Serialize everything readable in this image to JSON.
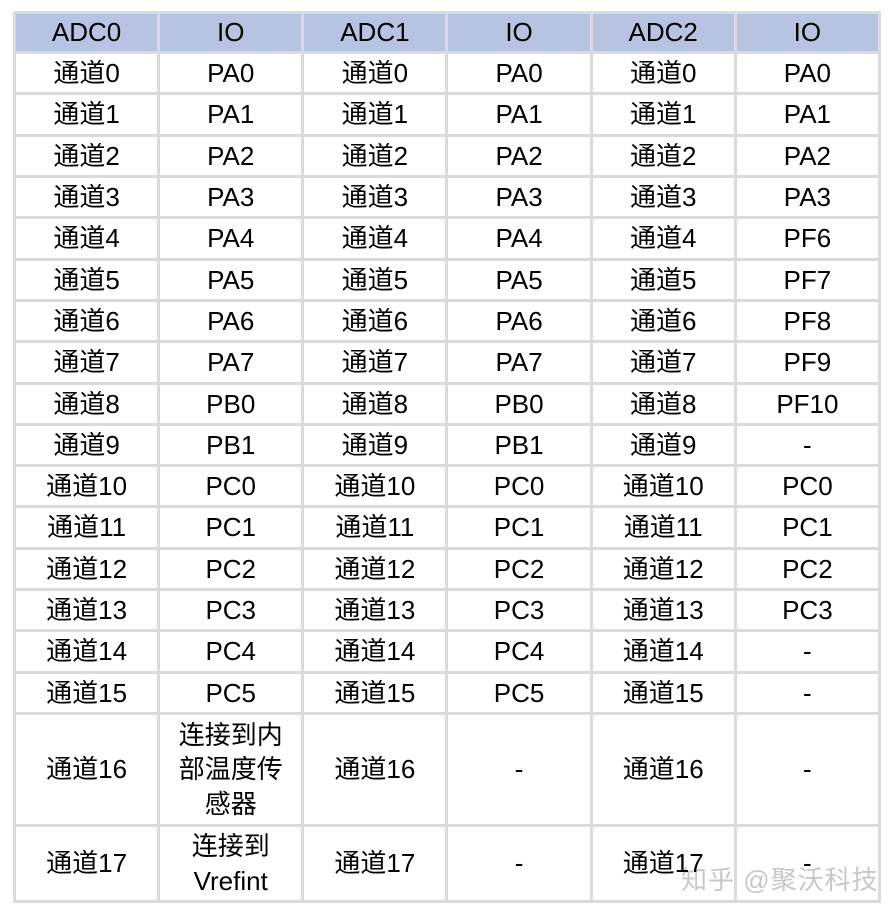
{
  "table": {
    "headers": [
      "ADC0",
      "IO",
      "ADC1",
      "IO",
      "ADC2",
      "IO"
    ],
    "rows": [
      [
        "通道0",
        "PA0",
        "通道0",
        "PA0",
        "通道0",
        "PA0"
      ],
      [
        "通道1",
        "PA1",
        "通道1",
        "PA1",
        "通道1",
        "PA1"
      ],
      [
        "通道2",
        "PA2",
        "通道2",
        "PA2",
        "通道2",
        "PA2"
      ],
      [
        "通道3",
        "PA3",
        "通道3",
        "PA3",
        "通道3",
        "PA3"
      ],
      [
        "通道4",
        "PA4",
        "通道4",
        "PA4",
        "通道4",
        "PF6"
      ],
      [
        "通道5",
        "PA5",
        "通道5",
        "PA5",
        "通道5",
        "PF7"
      ],
      [
        "通道6",
        "PA6",
        "通道6",
        "PA6",
        "通道6",
        "PF8"
      ],
      [
        "通道7",
        "PA7",
        "通道7",
        "PA7",
        "通道7",
        "PF9"
      ],
      [
        "通道8",
        "PB0",
        "通道8",
        "PB0",
        "通道8",
        "PF10"
      ],
      [
        "通道9",
        "PB1",
        "通道9",
        "PB1",
        "通道9",
        "-"
      ],
      [
        "通道10",
        "PC0",
        "通道10",
        "PC0",
        "通道10",
        "PC0"
      ],
      [
        "通道11",
        "PC1",
        "通道11",
        "PC1",
        "通道11",
        "PC1"
      ],
      [
        "通道12",
        "PC2",
        "通道12",
        "PC2",
        "通道12",
        "PC2"
      ],
      [
        "通道13",
        "PC3",
        "通道13",
        "PC3",
        "通道13",
        "PC3"
      ],
      [
        "通道14",
        "PC4",
        "通道14",
        "PC4",
        "通道14",
        "-"
      ],
      [
        "通道15",
        "PC5",
        "通道15",
        "PC5",
        "通道15",
        "-"
      ],
      [
        "通道16",
        "连接到内部温度传感器",
        "通道16",
        "-",
        "通道16",
        "-"
      ],
      [
        "通道17",
        "连接到Vrefint",
        "通道17",
        "-",
        "通道17",
        "-"
      ]
    ]
  },
  "watermark": {
    "text": "知乎 @聚沃科技"
  },
  "colors": {
    "header_bg": "#b6c3e3",
    "grid_border": "#dbdbdb",
    "cell_bg": "#ffffff",
    "text": "#000000",
    "watermark": "#c8c8c8"
  }
}
